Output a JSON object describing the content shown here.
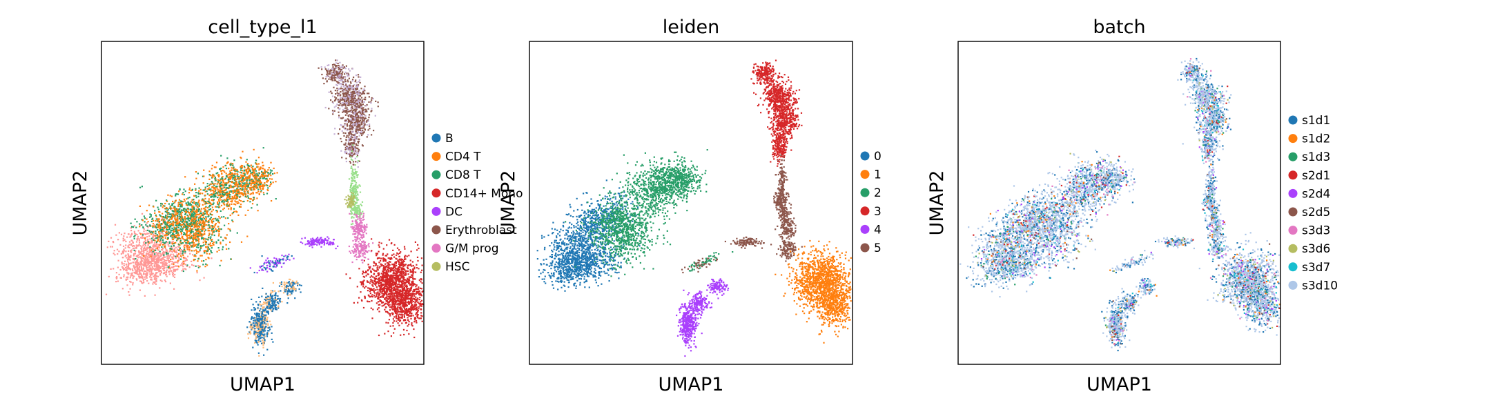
{
  "chart_data": [
    {
      "type": "scatter",
      "title": "cell_type_l1",
      "xlabel": "UMAP1",
      "ylabel": "UMAP2",
      "xticks": [],
      "yticks": [],
      "grid": false,
      "legend_position": "right-outside",
      "legend": [
        {
          "name": "B",
          "color": "#1f77b4"
        },
        {
          "name": "CD4 T",
          "color": "#ff7f0e"
        },
        {
          "name": "CD8 T",
          "color": "#279e68"
        },
        {
          "name": "CD14+ Mono",
          "color": "#d62728"
        },
        {
          "name": "DC",
          "color": "#aa40fc"
        },
        {
          "name": "Erythroblast",
          "color": "#8c564b"
        },
        {
          "name": "G/M prog",
          "color": "#e377c2"
        },
        {
          "name": "HSC",
          "color": "#b5bd61"
        }
      ]
    },
    {
      "type": "scatter",
      "title": "leiden",
      "xlabel": "UMAP1",
      "ylabel": "UMAP2",
      "xticks": [],
      "yticks": [],
      "grid": false,
      "legend_position": "right-outside",
      "legend": [
        {
          "name": "0",
          "color": "#1f77b4"
        },
        {
          "name": "1",
          "color": "#ff7f0e"
        },
        {
          "name": "2",
          "color": "#279e68"
        },
        {
          "name": "3",
          "color": "#d62728"
        },
        {
          "name": "4",
          "color": "#aa40fc"
        },
        {
          "name": "5",
          "color": "#8c564b"
        }
      ]
    },
    {
      "type": "scatter",
      "title": "batch",
      "xlabel": "UMAP1",
      "ylabel": "UMAP2",
      "xticks": [],
      "yticks": [],
      "grid": false,
      "legend_position": "right-outside",
      "legend": [
        {
          "name": "s1d1",
          "color": "#1f77b4"
        },
        {
          "name": "s1d2",
          "color": "#ff7f0e"
        },
        {
          "name": "s1d3",
          "color": "#279e68"
        },
        {
          "name": "s2d1",
          "color": "#d62728"
        },
        {
          "name": "s2d4",
          "color": "#aa40fc"
        },
        {
          "name": "s2d5",
          "color": "#8c564b"
        },
        {
          "name": "s3d3",
          "color": "#e377c2"
        },
        {
          "name": "s3d6",
          "color": "#b5bd61"
        },
        {
          "name": "s3d7",
          "color": "#17becf"
        },
        {
          "name": "s3d10",
          "color": "#aec7e8"
        }
      ]
    }
  ]
}
